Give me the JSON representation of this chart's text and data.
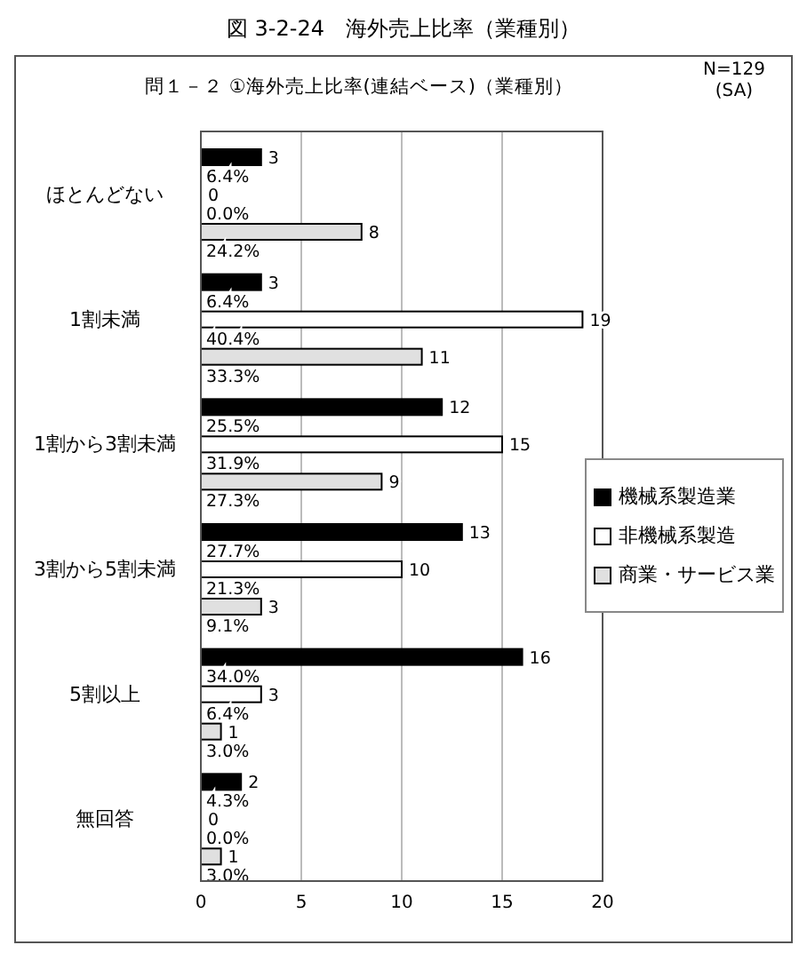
{
  "chart_data": {
    "type": "bar",
    "orientation": "horizontal",
    "title": "図 3-2-24　海外売上比率（業種別）",
    "subtitle": "問１－２ ①海外売上比率(連結ベース)（業種別）",
    "annotations": [
      "N=129",
      "(SA)"
    ],
    "categories": [
      "ほとんどない",
      "1割未満",
      "1割から3割未満",
      "3割から5割未満",
      "5割以上",
      "無回答"
    ],
    "series": [
      {
        "name": "機械系製造業",
        "color": "#000000",
        "values": [
          3,
          3,
          12,
          13,
          16,
          2
        ],
        "value_labels": [
          "3 6.4%",
          "3 6.4%",
          "12 25.5%",
          "13 27.7%",
          "16 34.0%",
          "2 4.3%"
        ]
      },
      {
        "name": "非機械系製造",
        "color": "#ffffff",
        "values": [
          0,
          19,
          15,
          10,
          3,
          0
        ],
        "value_labels": [
          "0 0.0%",
          "19 40.4%",
          "15 31.9%",
          "10 21.3%",
          "3 6.4%",
          "0 0.0%"
        ]
      },
      {
        "name": "商業・サービス業",
        "color": "#e0e0e0",
        "values": [
          8,
          11,
          9,
          3,
          1,
          1
        ],
        "value_labels": [
          "8 24.2%",
          "11 33.3%",
          "9 27.3%",
          "3 9.1%",
          "1 3.0%",
          "1 3.0%"
        ]
      }
    ],
    "xlim": [
      0,
      20
    ],
    "xticks": [
      0,
      5,
      10,
      15,
      20
    ],
    "grid": "x",
    "legend": "right"
  }
}
